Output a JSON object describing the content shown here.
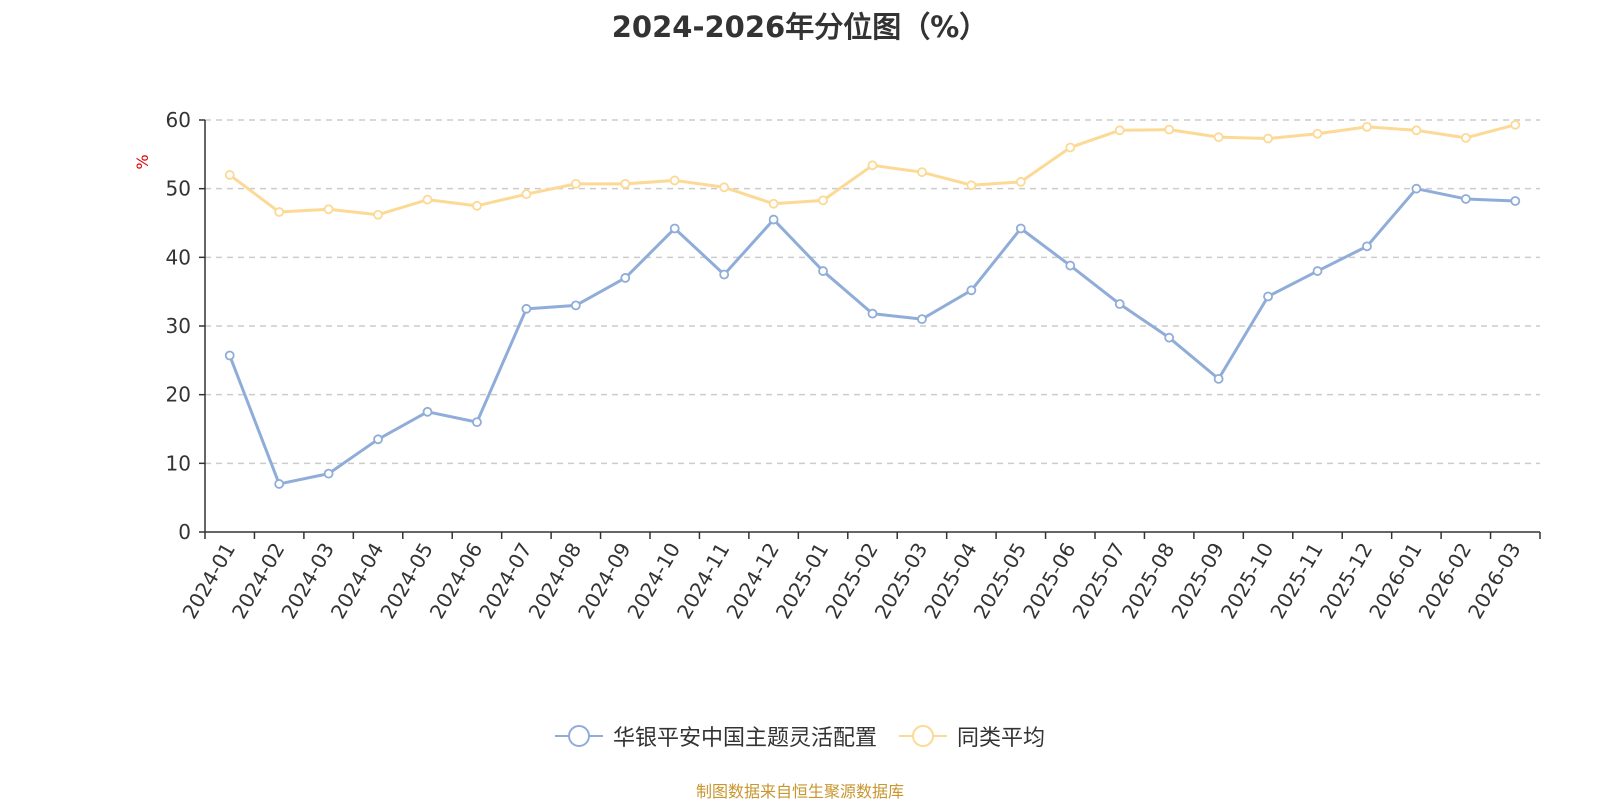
{
  "chart_data": {
    "type": "line",
    "title": "2024-2026年分位图（%）",
    "ylabel": "%",
    "xlabel": "",
    "ylim": [
      0,
      60
    ],
    "yticks": [
      0,
      10,
      20,
      30,
      40,
      50,
      60
    ],
    "grid": true,
    "legend_position": "bottom-center",
    "categories": [
      "2024-01",
      "2024-02",
      "2024-03",
      "2024-04",
      "2024-05",
      "2024-06",
      "2024-07",
      "2024-08",
      "2024-09",
      "2024-10",
      "2024-11",
      "2024-12",
      "2025-01",
      "2025-02",
      "2025-03",
      "2025-04",
      "2025-05",
      "2025-06",
      "2025-07",
      "2025-08",
      "2025-09",
      "2025-10",
      "2025-11",
      "2025-12",
      "2026-01",
      "2026-02",
      "2026-03"
    ],
    "series": [
      {
        "name": "华银平安中国主题灵活配置",
        "color": "#8fadd8",
        "values": [
          25.7,
          7.0,
          8.5,
          13.5,
          17.5,
          16.0,
          32.5,
          33.0,
          37.0,
          44.2,
          37.5,
          45.5,
          38.0,
          31.8,
          31.0,
          35.2,
          44.2,
          38.8,
          33.2,
          28.3,
          22.3,
          34.3,
          38.0,
          41.6,
          50.0,
          48.5,
          48.2
        ]
      },
      {
        "name": "同类平均",
        "color": "#fcd995",
        "values": [
          52.0,
          46.6,
          47.0,
          46.2,
          48.4,
          47.5,
          49.2,
          50.7,
          50.7,
          51.2,
          50.2,
          47.8,
          48.3,
          53.4,
          52.4,
          50.5,
          51.0,
          56.0,
          58.5,
          58.6,
          57.5,
          57.3,
          58.0,
          59.0,
          58.5,
          57.4,
          59.3
        ]
      }
    ]
  },
  "footer": {
    "source": "制图数据来自恒生聚源数据库"
  }
}
